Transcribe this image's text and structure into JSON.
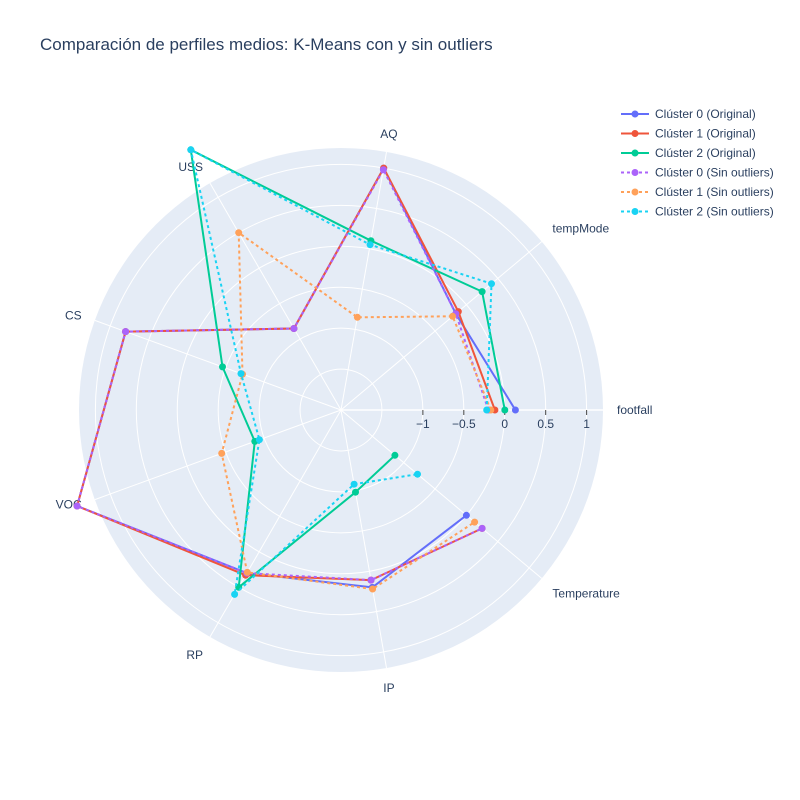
{
  "chart_data": {
    "type": "line",
    "subtype": "polar",
    "title": "Comparación de perfiles medios: K-Means con y sin outliers",
    "theta": [
      "footfall",
      "tempMode",
      "AQ",
      "USS",
      "CS",
      "VOC",
      "RP",
      "IP",
      "Temperature"
    ],
    "radial_range": [
      -2,
      1.2
    ],
    "radial_ticks": [
      -1,
      -0.5,
      0,
      0.5,
      1
    ],
    "radial_tick_labels": [
      "−1",
      "−0.5",
      "0",
      "0.5",
      "1"
    ],
    "grid": true,
    "legend_position": "top-right",
    "series": [
      {
        "name": "Clúster 0 (Original)",
        "color": "#636efa",
        "dash": "solid",
        "values": [
          0.13,
          -0.17,
          1.0,
          -0.85,
          0.8,
          1.43,
          0.3,
          0.2,
          0.0
        ]
      },
      {
        "name": "Clúster 1 (Original)",
        "color": "#ef553b",
        "dash": "solid",
        "values": [
          -0.12,
          -0.13,
          1.0,
          -0.85,
          0.8,
          1.43,
          0.33,
          0.11,
          0.25
        ]
      },
      {
        "name": "Clúster 2 (Original)",
        "color": "#00cc96",
        "dash": "solid",
        "values": [
          0.0,
          0.25,
          0.1,
          1.67,
          -0.46,
          -0.88,
          0.5,
          -0.98,
          -1.14
        ]
      },
      {
        "name": "Clúster 0 (Sin outliers)",
        "color": "#ab63fa",
        "dash": "dot",
        "values": [
          -0.2,
          -0.17,
          0.98,
          -0.85,
          0.8,
          1.43,
          0.3,
          0.11,
          0.25
        ]
      },
      {
        "name": "Clúster 1 (Sin outliers)",
        "color": "#ffa15a",
        "dash": "dot",
        "values": [
          -0.17,
          -0.22,
          -0.85,
          0.5,
          -0.72,
          -0.45,
          0.29,
          0.22,
          0.13
        ]
      },
      {
        "name": "Clúster 2 (Sin outliers)",
        "color": "#19d3f3",
        "dash": "dot",
        "values": [
          -0.22,
          0.4,
          0.05,
          1.67,
          -0.7,
          -0.94,
          0.6,
          -1.08,
          -0.78
        ]
      }
    ]
  }
}
